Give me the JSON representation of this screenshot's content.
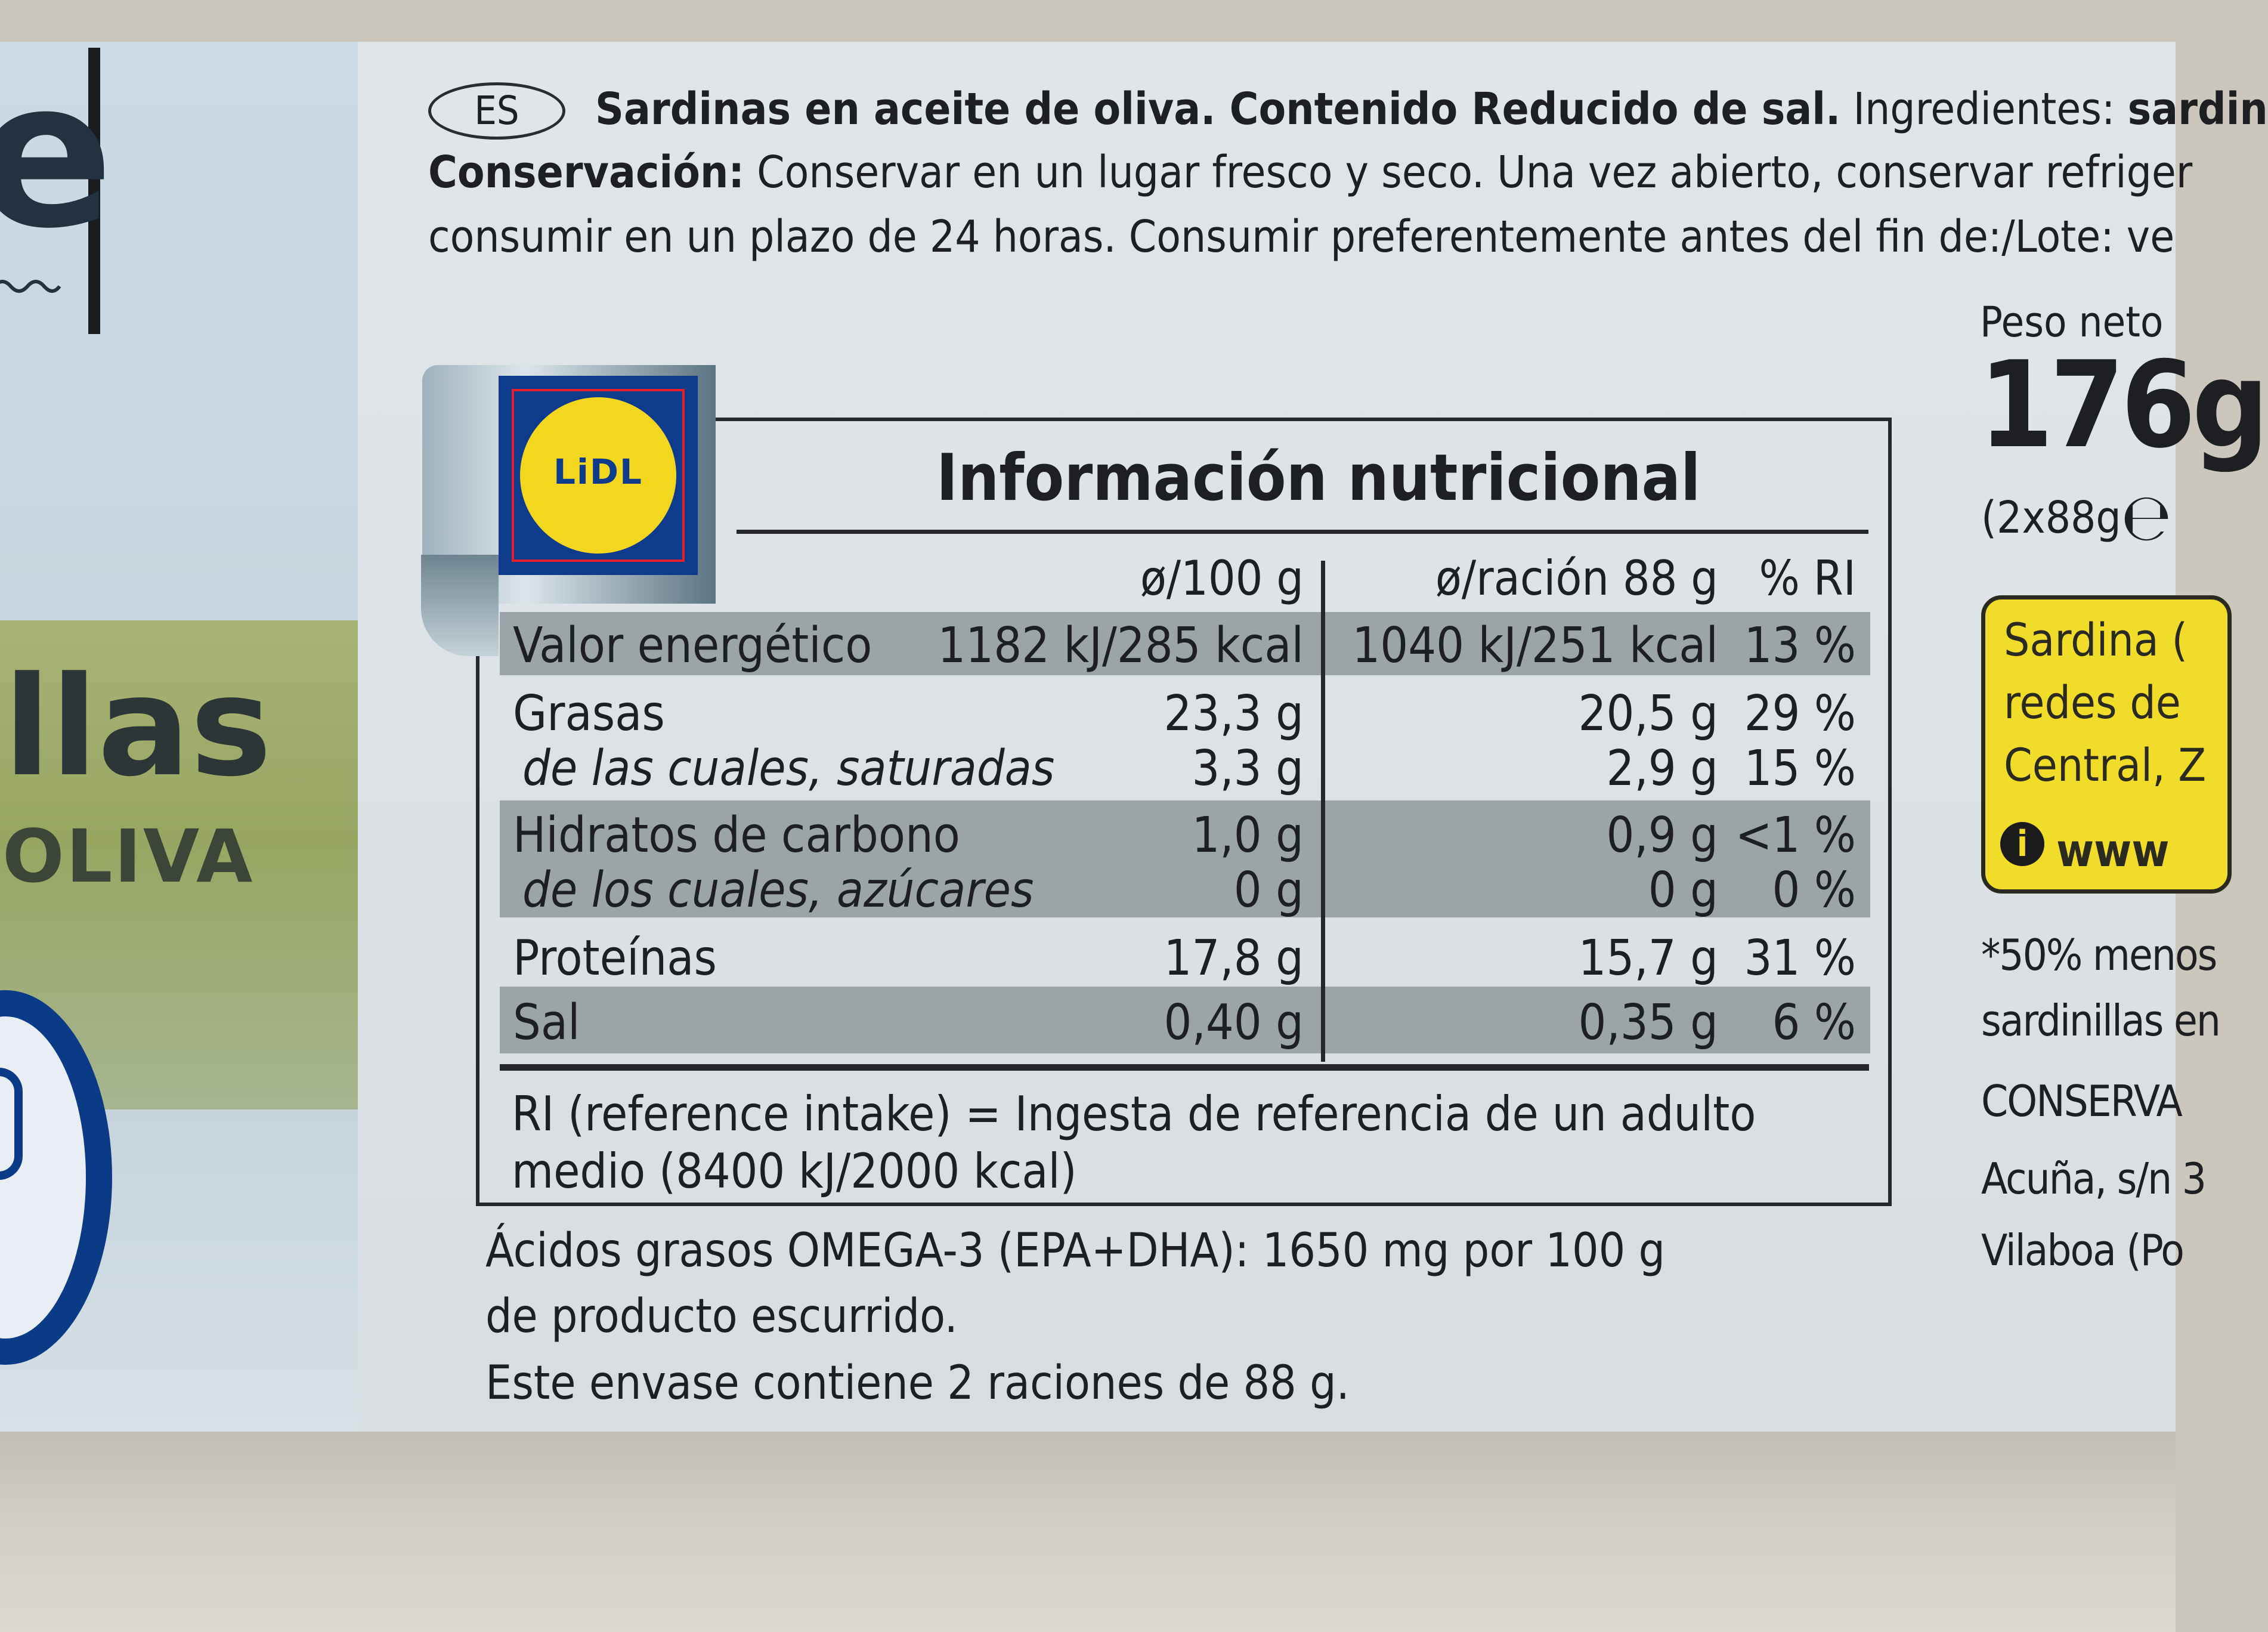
{
  "left_panel": {
    "big_letter": "e",
    "brand_word": "llas",
    "sub_word": "OLIVA"
  },
  "top_text": {
    "country_badge": "ES",
    "line1_bold": "Sardinas en aceite de oliva. Contenido Reducido de sal.",
    "line1_regular": " Ingredientes: ",
    "line1_bold_tail": "sardin",
    "line2_bold": "Conservación:",
    "line2_regular": " Conservar en un lugar fresco y seco. Una vez abierto, conservar refriger",
    "line3": "consumir en un plazo de 24 horas. Consumir preferentemente antes del fin de:/Lote: ve"
  },
  "right_column": {
    "peso_label": "Peso neto",
    "peso_value": "176g",
    "peso_detail": "(2x88g",
    "estimated_sign": "℮",
    "yellow_box": {
      "line1": "Sardina (",
      "line2": "redes de",
      "line3": "Central, Z",
      "info_icon_glyph": "i",
      "url": "www"
    },
    "footnote1": "*50% menos",
    "footnote2": "sardinillas en",
    "producer": "CONSERVA",
    "address1": "Acuña, s/n 3",
    "address2": "Vilaboa (Po"
  },
  "logo": {
    "text": "LiDL"
  },
  "nutrition": {
    "title": "Información nutricional",
    "headers": {
      "per100": "ø/100 g",
      "perportion": "ø/ración 88 g",
      "ri": "% RI"
    },
    "rows": [
      {
        "label": "Valor energético",
        "per100": "1182 kJ/285 kcal",
        "perportion": "1040 kJ/251 kcal",
        "ri": "13 %"
      },
      {
        "label": "Grasas",
        "per100": "23,3 g",
        "perportion": "20,5 g",
        "ri": "29 %"
      },
      {
        "label": "de las cuales, saturadas",
        "per100": "3,3 g",
        "perportion": "2,9 g",
        "ri": "15 %"
      },
      {
        "label": "Hidratos de carbono",
        "per100": "1,0 g",
        "perportion": "0,9 g",
        "ri": "<1 %"
      },
      {
        "label": "de los cuales, azúcares",
        "per100": "0 g",
        "perportion": "0 g",
        "ri": "0 %"
      },
      {
        "label": "Proteínas",
        "per100": "17,8 g",
        "perportion": "15,7 g",
        "ri": "31 %"
      },
      {
        "label": "Sal",
        "per100": "0,40 g",
        "perportion": "0,35 g",
        "ri": "6 %"
      }
    ],
    "footnote_line1": "RI (reference intake) = Ingesta de referencia de un adulto",
    "footnote_line2": "medio (8400 kJ/2000 kcal)"
  },
  "below_table": {
    "line1": "Ácidos grasos OMEGA-3 (EPA+DHA): 1650 mg por 100 g",
    "line2": "de producto escurrido.",
    "line3": "Este envase contiene 2 raciones de 88 g."
  }
}
